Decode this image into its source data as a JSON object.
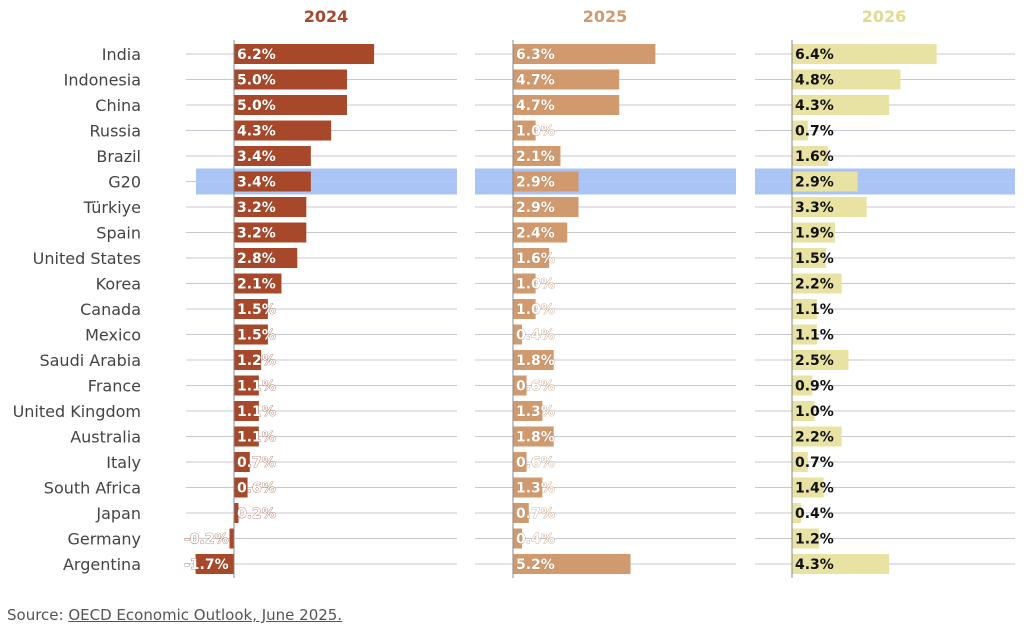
{
  "chart_data": {
    "type": "bar",
    "orientation": "horizontal",
    "grid": true,
    "highlight": "G20",
    "categories": [
      "India",
      "Indonesia",
      "China",
      "Russia",
      "Brazil",
      "G20",
      "Türkiye",
      "Spain",
      "United States",
      "Korea",
      "Canada",
      "Mexico",
      "Saudi Arabia",
      "France",
      "United Kingdom",
      "Australia",
      "Italy",
      "South Africa",
      "Japan",
      "Germany",
      "Argentina"
    ],
    "series": [
      {
        "name": "2024",
        "color": "#a8482a",
        "values": [
          6.2,
          5.0,
          5.0,
          4.3,
          3.4,
          3.4,
          3.2,
          3.2,
          2.8,
          2.1,
          1.5,
          1.5,
          1.2,
          1.1,
          1.1,
          1.1,
          0.7,
          0.6,
          0.2,
          -0.2,
          -1.7
        ],
        "labels": [
          "6.2%",
          "5.0%",
          "5.0%",
          "4.3%",
          "3.4%",
          "3.4%",
          "3.2%",
          "3.2%",
          "2.8%",
          "2.1%",
          "1.5%",
          "1.5%",
          "1.2%",
          "1.1%",
          "1.1%",
          "1.1%",
          "0.7%",
          "0.6%",
          "0.2%",
          "-0.2%",
          "-1.7%"
        ]
      },
      {
        "name": "2025",
        "color": "#d19a6e",
        "values": [
          6.3,
          4.7,
          4.7,
          1.0,
          2.1,
          2.9,
          2.9,
          2.4,
          1.6,
          1.0,
          1.0,
          0.4,
          1.8,
          0.6,
          1.3,
          1.8,
          0.6,
          1.3,
          0.7,
          0.4,
          5.2
        ],
        "labels": [
          "6.3%",
          "4.7%",
          "4.7%",
          "1.0%",
          "2.1%",
          "2.9%",
          "2.9%",
          "2.4%",
          "1.6%",
          "1.0%",
          "1.0%",
          "0.4%",
          "1.8%",
          "0.6%",
          "1.3%",
          "1.8%",
          "0.6%",
          "1.3%",
          "0.7%",
          "0.4%",
          "5.2%"
        ]
      },
      {
        "name": "2026",
        "color": "#e8e2a3",
        "values": [
          6.4,
          4.8,
          4.3,
          0.7,
          1.6,
          2.9,
          3.3,
          1.9,
          1.5,
          2.2,
          1.1,
          1.1,
          2.5,
          0.9,
          1.0,
          2.2,
          0.7,
          1.4,
          0.4,
          1.2,
          4.3
        ],
        "labels": [
          "6.4%",
          "4.8%",
          "4.3%",
          "0.7%",
          "1.6%",
          "2.9%",
          "3.3%",
          "1.9%",
          "1.5%",
          "2.2%",
          "1.1%",
          "1.1%",
          "2.5%",
          "0.9%",
          "1.0%",
          "2.2%",
          "0.7%",
          "1.4%",
          "0.4%",
          "1.2%",
          "4.3%"
        ]
      }
    ]
  },
  "colors": {
    "highlight_band": "#a9c4f5",
    "gridline": "#c8c8d0",
    "axis_line": "#888888",
    "header_2024": "#a8482a",
    "header_2025": "#d19a6e",
    "header_2026": "#e0da92"
  },
  "source": {
    "prefix": "Source: ",
    "link_text": "OECD Economic Outlook, June 2025."
  }
}
